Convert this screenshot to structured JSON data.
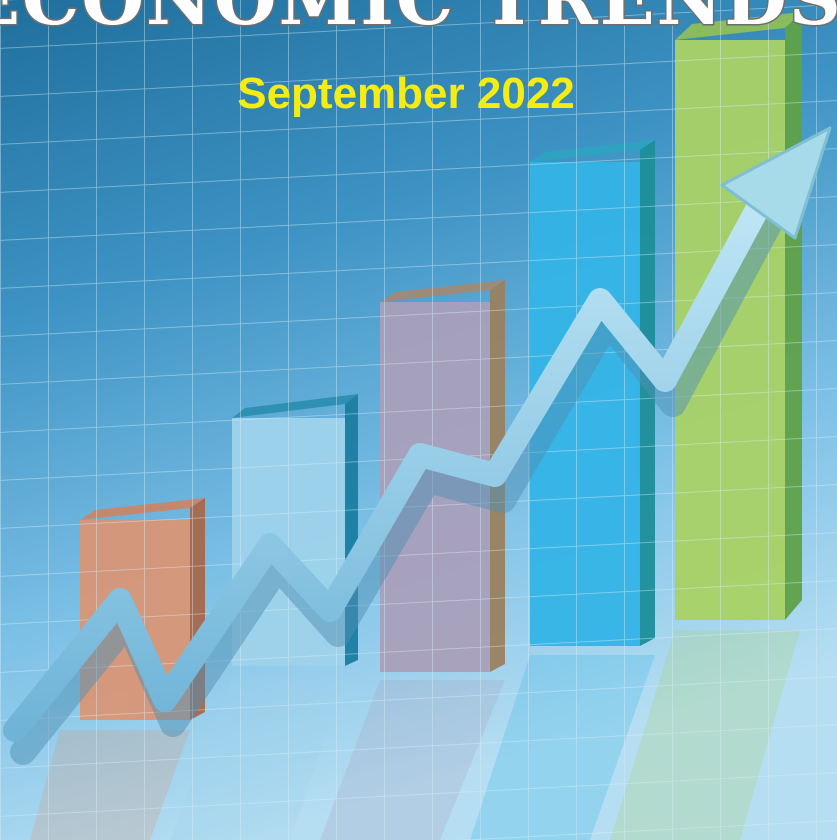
{
  "header": {
    "title": "ECONOMIC TRENDS",
    "subtitle": "September 2022"
  }
}
